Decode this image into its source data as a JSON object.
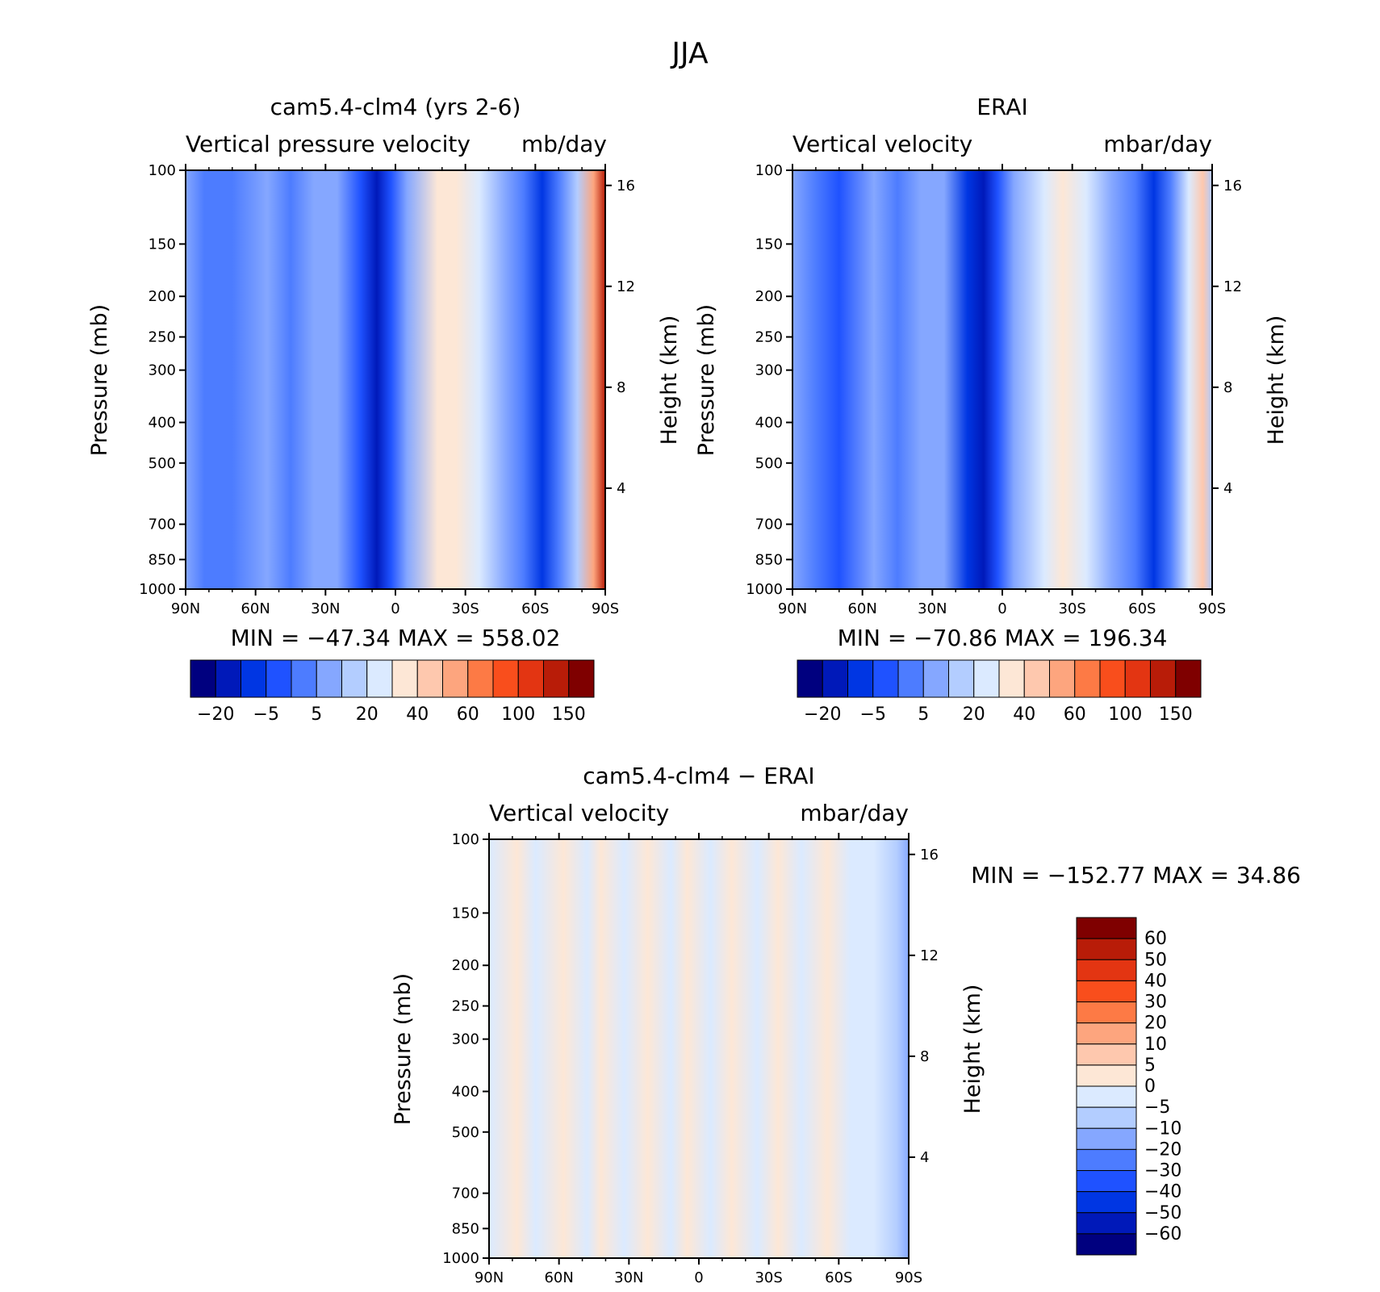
{
  "figure": {
    "title": "JJA"
  },
  "chart_data": [
    {
      "type": "heatmap",
      "title": "cam5.4-clm4 (yrs 2-6)",
      "left_string": "Vertical pressure velocity",
      "right_string": "mb/day",
      "xlabel": "",
      "ylabel": "Pressure (mb)",
      "ylabel_right": "Height (km)",
      "x_ticks": [
        "90N",
        "60N",
        "30N",
        "0",
        "30S",
        "60S",
        "90S"
      ],
      "y_ticks": [
        "100",
        "150",
        "200",
        "250",
        "300",
        "400",
        "500",
        "700",
        "850",
        "1000"
      ],
      "y_right_ticks": [
        "16",
        "12",
        "8",
        "4"
      ],
      "ylim": [
        1000,
        100
      ],
      "y_scale": "log",
      "min_max_text": "MIN = −47.34   MAX = 558.02",
      "colorbar": {
        "orientation": "horizontal",
        "tick_labels": [
          "−20",
          "−5",
          "5",
          "20",
          "40",
          "60",
          "100",
          "150"
        ],
        "colors": [
          "#00007f",
          "#0019b9",
          "#0036e3",
          "#1f52ff",
          "#4d7cff",
          "#85a7ff",
          "#b3cdff",
          "#dbeaff",
          "#fde7d6",
          "#fec8ae",
          "#fda57e",
          "#fd7a45",
          "#f94e1c",
          "#e33512",
          "#b81c08",
          "#7f0000"
        ]
      },
      "bands": [
        {
          "lat": 90,
          "value": 2
        },
        {
          "lat": 82,
          "value": -3
        },
        {
          "lat": 70,
          "value": -5
        },
        {
          "lat": 55,
          "value": 0
        },
        {
          "lat": 45,
          "value": -1
        },
        {
          "lat": 35,
          "value": 3
        },
        {
          "lat": 25,
          "value": 1
        },
        {
          "lat": 15,
          "value": -10
        },
        {
          "lat": 8,
          "value": -25
        },
        {
          "lat": 2,
          "value": -6
        },
        {
          "lat": -5,
          "value": 0
        },
        {
          "lat": -18,
          "value": 20
        },
        {
          "lat": -26,
          "value": 25
        },
        {
          "lat": -36,
          "value": 15
        },
        {
          "lat": -47,
          "value": 2
        },
        {
          "lat": -55,
          "value": -1
        },
        {
          "lat": -63,
          "value": -12
        },
        {
          "lat": -70,
          "value": -3
        },
        {
          "lat": -78,
          "value": 8
        },
        {
          "lat": -85,
          "value": 40
        },
        {
          "lat": -90,
          "value": 100
        }
      ]
    },
    {
      "type": "heatmap",
      "title": "ERAI",
      "left_string": "Vertical velocity",
      "right_string": "mbar/day",
      "xlabel": "",
      "ylabel": "Pressure (mb)",
      "ylabel_right": "Height (km)",
      "x_ticks": [
        "90N",
        "60N",
        "30N",
        "0",
        "30S",
        "60S",
        "90S"
      ],
      "y_ticks": [
        "100",
        "150",
        "200",
        "250",
        "300",
        "400",
        "500",
        "700",
        "850",
        "1000"
      ],
      "y_right_ticks": [
        "16",
        "12",
        "8",
        "4"
      ],
      "ylim": [
        1000,
        100
      ],
      "y_scale": "log",
      "min_max_text": "MIN = −70.86   MAX = 196.34",
      "colorbar": {
        "orientation": "horizontal",
        "tick_labels": [
          "−20",
          "−5",
          "5",
          "20",
          "40",
          "60",
          "100",
          "150"
        ],
        "colors": [
          "#00007f",
          "#0019b9",
          "#0036e3",
          "#1f52ff",
          "#4d7cff",
          "#85a7ff",
          "#b3cdff",
          "#dbeaff",
          "#fde7d6",
          "#fec8ae",
          "#fda57e",
          "#fd7a45",
          "#f94e1c",
          "#e33512",
          "#b81c08",
          "#7f0000"
        ]
      },
      "bands": [
        {
          "lat": 90,
          "value": 0
        },
        {
          "lat": 80,
          "value": -4
        },
        {
          "lat": 70,
          "value": -6
        },
        {
          "lat": 55,
          "value": 0
        },
        {
          "lat": 45,
          "value": -2
        },
        {
          "lat": 35,
          "value": 2
        },
        {
          "lat": 25,
          "value": 0
        },
        {
          "lat": 15,
          "value": -15
        },
        {
          "lat": 8,
          "value": -30
        },
        {
          "lat": 2,
          "value": -8
        },
        {
          "lat": -5,
          "value": 0
        },
        {
          "lat": -18,
          "value": 18
        },
        {
          "lat": -26,
          "value": 22
        },
        {
          "lat": -36,
          "value": 12
        },
        {
          "lat": -47,
          "value": 0
        },
        {
          "lat": -57,
          "value": -3
        },
        {
          "lat": -65,
          "value": -15
        },
        {
          "lat": -72,
          "value": -2
        },
        {
          "lat": -80,
          "value": 10
        },
        {
          "lat": -86,
          "value": 30
        },
        {
          "lat": -90,
          "value": 8
        }
      ]
    },
    {
      "type": "heatmap",
      "title": "cam5.4-clm4 − ERAI",
      "left_string": "Vertical velocity",
      "right_string": "mbar/day",
      "xlabel": "",
      "ylabel": "Pressure (mb)",
      "ylabel_right": "Height (km)",
      "x_ticks": [
        "90N",
        "60N",
        "30N",
        "0",
        "30S",
        "60S",
        "90S"
      ],
      "y_ticks": [
        "100",
        "150",
        "200",
        "250",
        "300",
        "400",
        "500",
        "700",
        "850",
        "1000"
      ],
      "y_right_ticks": [
        "16",
        "12",
        "8",
        "4"
      ],
      "ylim": [
        1000,
        100
      ],
      "y_scale": "log",
      "min_max_text": "MIN = −152.77   MAX =  34.86",
      "colorbar": {
        "orientation": "vertical",
        "tick_labels": [
          "60",
          "50",
          "40",
          "30",
          "20",
          "10",
          "5",
          "0",
          "−5",
          "−10",
          "−20",
          "−30",
          "−40",
          "−50",
          "−60"
        ],
        "colors": [
          "#7f0000",
          "#b81c08",
          "#e33512",
          "#f94e1c",
          "#fd7a45",
          "#fda57e",
          "#fec8ae",
          "#fde7d6",
          "#dbeaff",
          "#b3cdff",
          "#85a7ff",
          "#4d7cff",
          "#1f52ff",
          "#0036e3",
          "#0019b9",
          "#00007f"
        ]
      },
      "bands": [
        {
          "lat": 90,
          "value": -2
        },
        {
          "lat": 78,
          "value": 2
        },
        {
          "lat": 70,
          "value": -2
        },
        {
          "lat": 58,
          "value": 2
        },
        {
          "lat": 48,
          "value": -2
        },
        {
          "lat": 42,
          "value": 3
        },
        {
          "lat": 32,
          "value": -2
        },
        {
          "lat": 22,
          "value": 2
        },
        {
          "lat": 12,
          "value": -3
        },
        {
          "lat": 5,
          "value": 2
        },
        {
          "lat": -5,
          "value": -2
        },
        {
          "lat": -14,
          "value": 2
        },
        {
          "lat": -25,
          "value": -2
        },
        {
          "lat": -34,
          "value": 2
        },
        {
          "lat": -44,
          "value": -2
        },
        {
          "lat": -55,
          "value": 2
        },
        {
          "lat": -65,
          "value": -3
        },
        {
          "lat": -75,
          "value": -2
        },
        {
          "lat": -85,
          "value": -8
        },
        {
          "lat": -90,
          "value": -12
        }
      ]
    }
  ]
}
